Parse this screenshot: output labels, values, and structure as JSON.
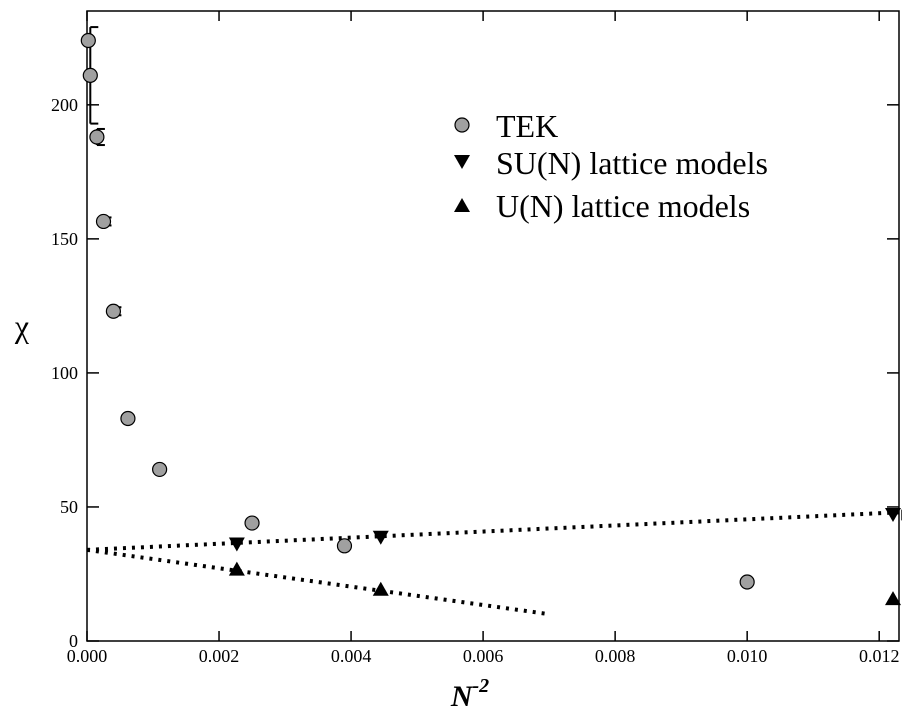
{
  "chart_data": {
    "type": "scatter",
    "xlabel": "N",
    "xlabel_exponent": "-2",
    "ylabel": "χ",
    "xlim": [
      0,
      0.0123
    ],
    "ylim": [
      0,
      235
    ],
    "x_ticks": [
      0,
      0.002,
      0.004,
      0.006,
      0.008,
      0.01,
      0.012
    ],
    "x_tick_labels": [
      "0.000",
      "0.002",
      "0.004",
      "0.006",
      "0.008",
      "0.010",
      "0.012"
    ],
    "y_ticks": [
      0,
      50,
      100,
      150,
      200
    ],
    "y_tick_labels": [
      "0",
      "50",
      "100",
      "150",
      "200"
    ],
    "grid": false,
    "legend_position": "top-right",
    "series": [
      {
        "name": "TEK",
        "marker": "circle",
        "color": "#a0a0a0",
        "points": [
          {
            "x": 2e-05,
            "y": 224,
            "err": 0
          },
          {
            "x": 5e-05,
            "y": 211,
            "err": 18
          },
          {
            "x": 0.00015,
            "y": 188,
            "err": 3
          },
          {
            "x": 0.00025,
            "y": 156.5,
            "err": 1.5
          },
          {
            "x": 0.0004,
            "y": 123,
            "err": 1.5
          },
          {
            "x": 0.00062,
            "y": 83,
            "err": 0
          },
          {
            "x": 0.0011,
            "y": 64,
            "err": 0
          },
          {
            "x": 0.0025,
            "y": 44,
            "err": 0
          },
          {
            "x": 0.0039,
            "y": 35.5,
            "err": 0
          },
          {
            "x": 0.01,
            "y": 22,
            "err": 0
          }
        ]
      },
      {
        "name": "SU(N) lattice models",
        "marker": "triangle-down",
        "color": "#000000",
        "points": [
          {
            "x": 0.00227,
            "y": 36,
            "err": 0
          },
          {
            "x": 0.00445,
            "y": 38.5,
            "err": 0
          },
          {
            "x": 0.01235,
            "y": 47,
            "err": 2
          }
        ]
      },
      {
        "name": "U(N) lattice models",
        "marker": "triangle-up",
        "color": "#000000",
        "points": [
          {
            "x": 0.00227,
            "y": 27,
            "err": 0
          },
          {
            "x": 0.00445,
            "y": 19.5,
            "err": 0
          },
          {
            "x": 0.01235,
            "y": 16,
            "err": 0
          }
        ]
      }
    ],
    "fit_lines": [
      {
        "series": "SU(N) lattice models",
        "from": [
          0,
          34
        ],
        "to": [
          0.0123,
          48
        ],
        "style": "dotted"
      },
      {
        "series": "U(N) lattice models",
        "from": [
          0,
          34
        ],
        "to": [
          0.007,
          10
        ],
        "style": "dotted"
      }
    ]
  }
}
